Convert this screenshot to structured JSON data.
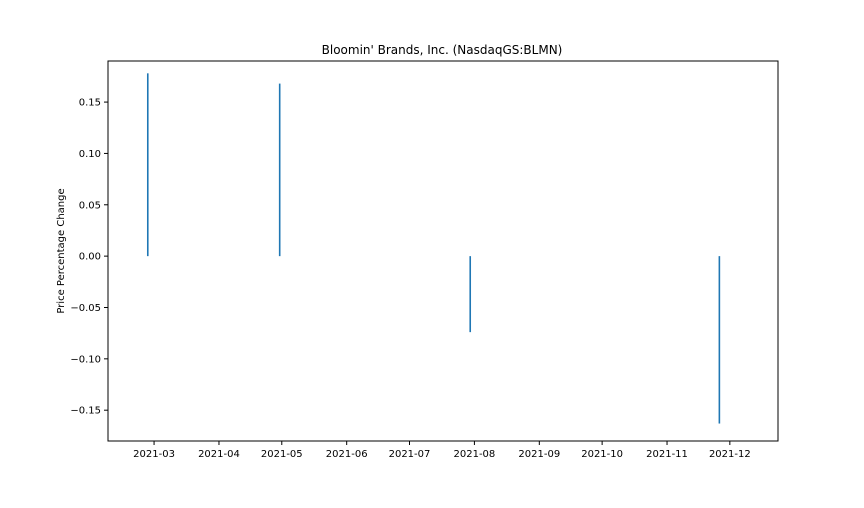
{
  "chart_data": {
    "type": "bar",
    "title": "Bloomin' Brands, Inc. (NasdaqGS:BLMN)",
    "xlabel": "",
    "ylabel": "Price Percentage Change",
    "x_axis": {
      "type": "date",
      "range": [
        "2021-02-07",
        "2021-12-24"
      ],
      "ticks": [
        "2021-03-01",
        "2021-04-01",
        "2021-05-01",
        "2021-06-01",
        "2021-07-01",
        "2021-08-01",
        "2021-09-01",
        "2021-10-01",
        "2021-11-01",
        "2021-12-01"
      ],
      "tick_labels": [
        "2021-03",
        "2021-04",
        "2021-05",
        "2021-06",
        "2021-07",
        "2021-08",
        "2021-09",
        "2021-10",
        "2021-11",
        "2021-12"
      ]
    },
    "y_axis": {
      "range": [
        -0.18,
        0.19
      ],
      "ticks": [
        -0.15,
        -0.1,
        -0.05,
        0.0,
        0.05,
        0.1,
        0.15
      ],
      "tick_labels": [
        "−0.15",
        "−0.10",
        "−0.05",
        "0.00",
        "0.05",
        "0.10",
        "0.15"
      ]
    },
    "grid": false,
    "bar_color": "#1f77b4",
    "series": [
      {
        "x": [
          "2021-02-26",
          "2021-04-30",
          "2021-07-30",
          "2021-11-26"
        ],
        "values": [
          0.178,
          0.168,
          -0.074,
          -0.163
        ]
      }
    ]
  }
}
